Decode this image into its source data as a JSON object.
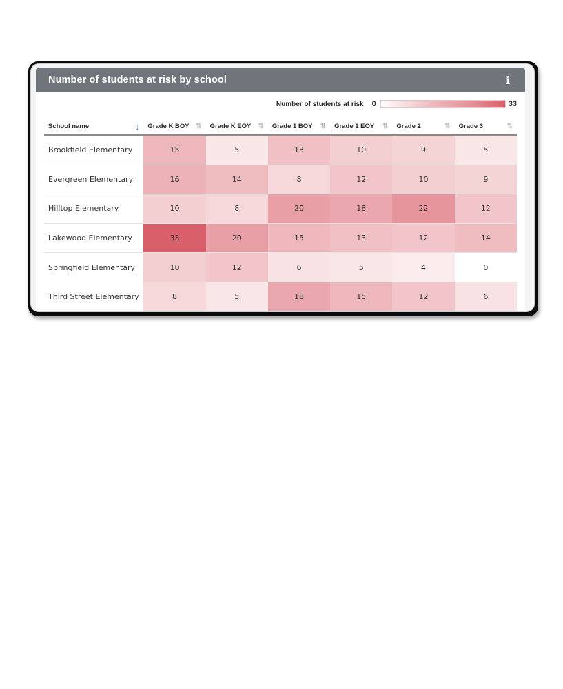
{
  "card": {
    "title": "Number of students at risk by school",
    "info_icon": "i"
  },
  "legend": {
    "label": "Number of students at risk",
    "min": "0",
    "max": "33",
    "color_low": "#ffffff",
    "color_high": "#d9606a"
  },
  "table": {
    "columns": [
      "School name",
      "Grade K BOY",
      "Grade K EOY",
      "Grade 1 BOY",
      "Grade 1 EOY",
      "Grade 2",
      "Grade 3"
    ],
    "sort_icons": {
      "active": "↓",
      "inactive": "⇅"
    },
    "rows": [
      {
        "school": "Brookfield Elementary",
        "values": [
          "15",
          "5",
          "13",
          "10",
          "9",
          "5"
        ]
      },
      {
        "school": "Evergreen Elementary",
        "values": [
          "16",
          "14",
          "8",
          "12",
          "10",
          "9"
        ]
      },
      {
        "school": "Hilltop Elementary",
        "values": [
          "10",
          "8",
          "20",
          "18",
          "22",
          "12"
        ]
      },
      {
        "school": "Lakewood Elementary",
        "values": [
          "33",
          "20",
          "15",
          "13",
          "12",
          "14"
        ]
      },
      {
        "school": "Springfield Elementary",
        "values": [
          "10",
          "12",
          "6",
          "5",
          "4",
          "0"
        ]
      },
      {
        "school": "Third Street Elementary",
        "values": [
          "8",
          "5",
          "18",
          "15",
          "12",
          "6"
        ]
      }
    ]
  },
  "chart_data": {
    "type": "heatmap",
    "title": "Number of students at risk by school",
    "x": [
      "Grade K BOY",
      "Grade K EOY",
      "Grade 1 BOY",
      "Grade 1 EOY",
      "Grade 2",
      "Grade 3"
    ],
    "y": [
      "Brookfield Elementary",
      "Evergreen Elementary",
      "Hilltop Elementary",
      "Lakewood Elementary",
      "Springfield Elementary",
      "Third Street Elementary"
    ],
    "values": [
      [
        15,
        5,
        13,
        10,
        9,
        5
      ],
      [
        16,
        14,
        8,
        12,
        10,
        9
      ],
      [
        10,
        8,
        20,
        18,
        22,
        12
      ],
      [
        33,
        20,
        15,
        13,
        12,
        14
      ],
      [
        10,
        12,
        6,
        5,
        4,
        0
      ],
      [
        8,
        5,
        18,
        15,
        12,
        6
      ]
    ],
    "color_scale": {
      "label": "Number of students at risk",
      "min": 0,
      "max": 33,
      "colors": [
        "#ffffff",
        "#d9606a"
      ]
    },
    "legend_position": "top-right"
  }
}
